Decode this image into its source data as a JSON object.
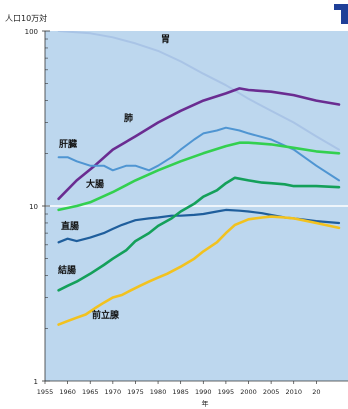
{
  "chart_data": {
    "type": "line",
    "ylabel": "人口10万対",
    "xlabel": "年",
    "yscale": "log",
    "ylim": [
      1,
      100
    ],
    "xlim": [
      1955,
      2020
    ],
    "yticks": [
      "100",
      "10",
      "1"
    ],
    "xticks": [
      "1955",
      "1960",
      "1965",
      "1970",
      "1975",
      "1980",
      "1985",
      "1990",
      "1995",
      "2000",
      "2005",
      "2010",
      "20"
    ],
    "colors": {
      "plot_bg": "#bdd7ee",
      "胃": "#a9c4e6",
      "肺": "#6a2c91",
      "肝臓": "#4f95d2",
      "大腸": "#33d04f",
      "直腸": "#1f5e9c",
      "結腸": "#14a05a",
      "前立腺": "#f2c21f",
      "corner_mark": "#1f3f98"
    },
    "series": [
      {
        "name": "胃",
        "x": [
          1958,
          1965,
          1970,
          1975,
          1980,
          1985,
          1990,
          1995,
          2000,
          2005,
          2010,
          2015,
          2020
        ],
        "y": [
          100,
          97,
          92,
          85,
          77,
          67,
          57,
          49,
          41,
          35,
          30,
          25,
          21
        ]
      },
      {
        "name": "肺",
        "x": [
          1958,
          1962,
          1966,
          1970,
          1975,
          1980,
          1985,
          1990,
          1995,
          1998,
          2000,
          2005,
          2010,
          2015,
          2020
        ],
        "y": [
          11,
          14,
          17,
          21,
          25,
          30,
          35,
          40,
          44,
          47,
          46,
          45,
          43,
          40,
          38
        ]
      },
      {
        "name": "肝臓",
        "x": [
          1958,
          1960,
          1962,
          1965,
          1968,
          1970,
          1973,
          1975,
          1978,
          1980,
          1983,
          1985,
          1988,
          1990,
          1993,
          1995,
          1998,
          2000,
          2005,
          2010,
          2015,
          2020
        ],
        "y": [
          19,
          19,
          18,
          17,
          17,
          16,
          17,
          17,
          16,
          17,
          19,
          21,
          24,
          26,
          27,
          28,
          27,
          26,
          24,
          21,
          17,
          14
        ]
      },
      {
        "name": "大腸",
        "x": [
          1958,
          1962,
          1965,
          1970,
          1975,
          1980,
          1985,
          1990,
          1995,
          1998,
          2000,
          2005,
          2010,
          2015,
          2020
        ],
        "y": [
          9.5,
          10,
          10.5,
          12,
          14,
          16,
          18,
          20,
          22,
          23,
          23,
          22.5,
          21.5,
          20.5,
          20
        ]
      },
      {
        "name": "直腸",
        "x": [
          1958,
          1960,
          1962,
          1965,
          1968,
          1970,
          1972,
          1975,
          1978,
          1980,
          1983,
          1985,
          1988,
          1990,
          1993,
          1995,
          1998,
          2000,
          2003,
          2005,
          2008,
          2010,
          2015,
          2020
        ],
        "y": [
          6.2,
          6.5,
          6.3,
          6.6,
          7,
          7.4,
          7.8,
          8.3,
          8.5,
          8.6,
          8.8,
          8.8,
          8.9,
          9,
          9.3,
          9.5,
          9.4,
          9.3,
          9.1,
          8.9,
          8.6,
          8.5,
          8.2,
          8
        ]
      },
      {
        "name": "結腸",
        "x": [
          1958,
          1960,
          1962,
          1965,
          1968,
          1970,
          1973,
          1975,
          1978,
          1980,
          1983,
          1985,
          1988,
          1990,
          1993,
          1995,
          1997,
          2000,
          2003,
          2005,
          2008,
          2010,
          2015,
          2020
        ],
        "y": [
          3.3,
          3.5,
          3.7,
          4.1,
          4.6,
          5,
          5.6,
          6.3,
          7,
          7.7,
          8.5,
          9.3,
          10.3,
          11.3,
          12.3,
          13.5,
          14.5,
          14,
          13.6,
          13.5,
          13.3,
          13,
          13,
          12.8
        ]
      },
      {
        "name": "前立腺",
        "x": [
          1958,
          1960,
          1962,
          1964,
          1966,
          1968,
          1970,
          1972,
          1974,
          1976,
          1978,
          1980,
          1982,
          1985,
          1988,
          1990,
          1993,
          1995,
          1997,
          2000,
          2003,
          2005,
          2008,
          2010,
          2015,
          2020
        ],
        "y": [
          2.1,
          2.2,
          2.3,
          2.4,
          2.6,
          2.8,
          3,
          3.1,
          3.3,
          3.5,
          3.7,
          3.9,
          4.1,
          4.5,
          5,
          5.5,
          6.2,
          7,
          7.8,
          8.4,
          8.6,
          8.7,
          8.6,
          8.5,
          8,
          7.5
        ]
      }
    ],
    "series_labels": [
      {
        "text": "胃",
        "series": "胃"
      },
      {
        "text": "肺",
        "series": "肺"
      },
      {
        "text": "肝臓",
        "series": "肝臓"
      },
      {
        "text": "大腸",
        "series": "大腸"
      },
      {
        "text": "直腸",
        "series": "直腸"
      },
      {
        "text": "結腸",
        "series": "結腸"
      },
      {
        "text": "前立腺",
        "series": "前立腺"
      }
    ]
  }
}
